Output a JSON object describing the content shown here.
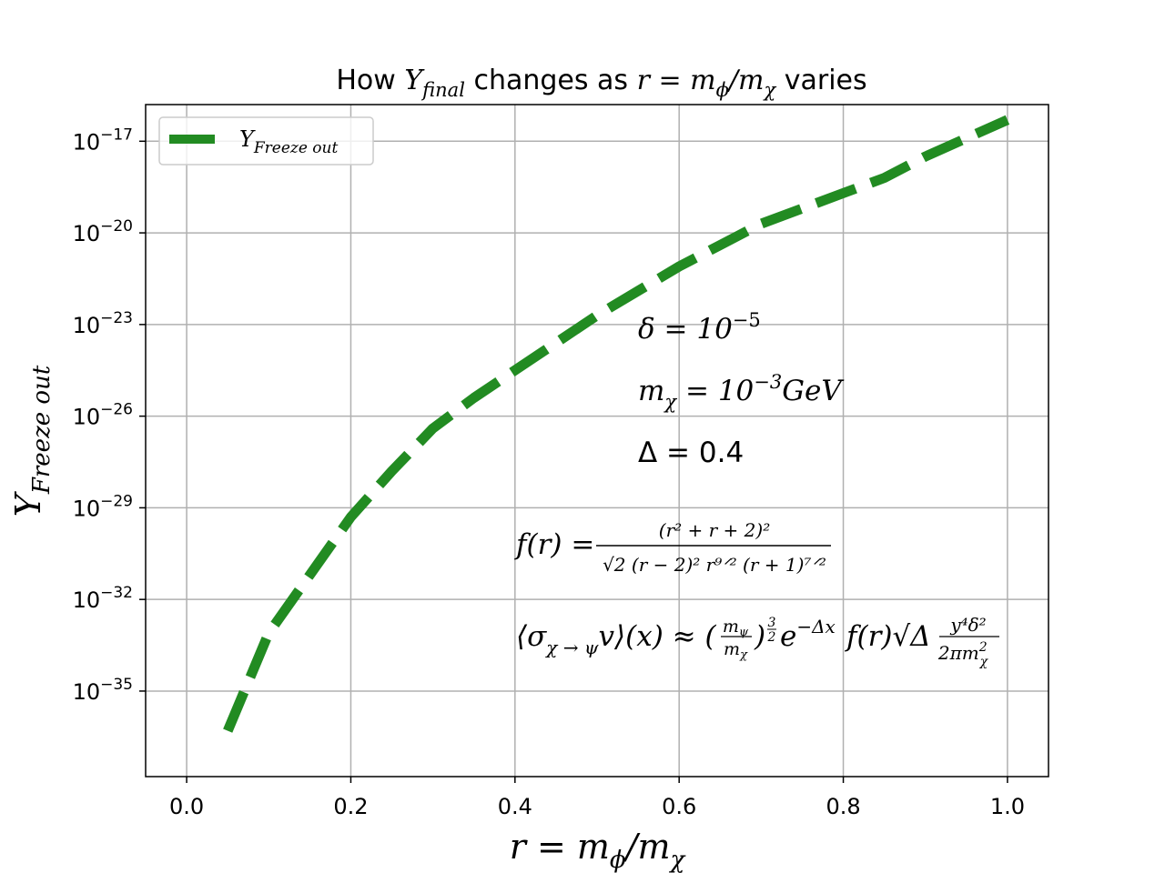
{
  "chart_data": {
    "type": "line",
    "title": {
      "prefix": "How ",
      "y_sym": "Y",
      "y_sub": "final",
      "middle": " changes as ",
      "r_expr": "r = m",
      "phi": "ϕ",
      "slash": "/m",
      "chi": "χ",
      "suffix": " varies"
    },
    "xlabel": {
      "main": "r = m",
      "sub1": "ϕ",
      "mid": "/m",
      "sub2": "χ"
    },
    "ylabel": {
      "main": "Y",
      "sub": "Freeze   out"
    },
    "xlim": [
      -0.05,
      1.05
    ],
    "ylim_log10": [
      -37.8,
      -15.8
    ],
    "yscale": "log",
    "grid": true,
    "legend_position": "upper-left",
    "x_ticks": [
      {
        "value": 0.0,
        "label": "0.0"
      },
      {
        "value": 0.2,
        "label": "0.2"
      },
      {
        "value": 0.4,
        "label": "0.4"
      },
      {
        "value": 0.6,
        "label": "0.6"
      },
      {
        "value": 0.8,
        "label": "0.8"
      },
      {
        "value": 1.0,
        "label": "1.0"
      }
    ],
    "y_ticks": [
      {
        "exp": -17,
        "base": "10",
        "sup": "−17"
      },
      {
        "exp": -20,
        "base": "10",
        "sup": "−20"
      },
      {
        "exp": -23,
        "base": "10",
        "sup": "−23"
      },
      {
        "exp": -26,
        "base": "10",
        "sup": "−26"
      },
      {
        "exp": -29,
        "base": "10",
        "sup": "−29"
      },
      {
        "exp": -32,
        "base": "10",
        "sup": "−32"
      },
      {
        "exp": -35,
        "base": "10",
        "sup": "−35"
      }
    ],
    "series": [
      {
        "name": {
          "main": "Y",
          "sub": "Freeze   out"
        },
        "color": "#228b22",
        "line_style": "dashed",
        "x": [
          0.05,
          0.1,
          0.15,
          0.2,
          0.25,
          0.3,
          0.35,
          0.4,
          0.45,
          0.5,
          0.55,
          0.6,
          0.65,
          0.7,
          0.75,
          0.8,
          0.85,
          0.9,
          0.95,
          1.0
        ],
        "log10_y": [
          -36.3,
          -33.1,
          -31.2,
          -29.3,
          -27.8,
          -26.4,
          -25.4,
          -24.5,
          -23.6,
          -22.7,
          -21.9,
          -21.1,
          -20.4,
          -19.7,
          -19.2,
          -18.7,
          -18.2,
          -17.5,
          -16.9,
          -16.3
        ]
      }
    ],
    "annotations": {
      "delta": {
        "sym": "δ = 10",
        "sup": "−5"
      },
      "mchi": {
        "sym": "m",
        "sub": "χ",
        "mid": " = 10",
        "sup": "−3",
        "unit": "GeV"
      },
      "Delta": {
        "text": "Δ = 0.4"
      },
      "f_formula": {
        "lhs": "f(r) = ",
        "numerator": "(r² + r + 2)²",
        "denominator": "√2 (r − 2)² r⁹ᐟ² (r + 1)⁷ᐟ²"
      },
      "sigma_formula": {
        "lhs": "⟨σ",
        "lhs_sub": "χ → ψ",
        "lhs_rest": "v⟩(x) ≈ (",
        "frac1_num": "m",
        "frac1_num_sub": "ψ",
        "frac1_den": "m",
        "frac1_den_sub": "χ",
        "paren_close": ")",
        "power_num": "3",
        "power_den": "2",
        "exp_base": "e",
        "exp_sup": "−Δx",
        "f_part": "f(r)√Δ",
        "frac2_num": "y⁴δ²",
        "frac2_den": "2πm",
        "frac2_den_sub": "χ",
        "frac2_den_sup": "2"
      }
    }
  }
}
